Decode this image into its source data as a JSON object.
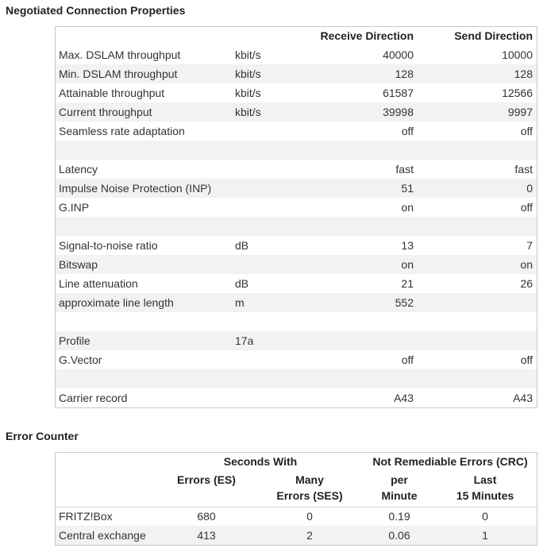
{
  "connection": {
    "title": "Negotiated Connection Properties",
    "headers": {
      "receive": "Receive Direction",
      "send": "Send Direction"
    },
    "rows": [
      {
        "label": "Max. DSLAM throughput",
        "unit": "kbit/s",
        "receive": 40000,
        "send": 10000
      },
      {
        "label": "Min. DSLAM throughput",
        "unit": "kbit/s",
        "receive": 128,
        "send": 128
      },
      {
        "label": "Attainable throughput",
        "unit": "kbit/s",
        "receive": 61587,
        "send": 12566
      },
      {
        "label": "Current throughput",
        "unit": "kbit/s",
        "receive": 39998,
        "send": 9997
      },
      {
        "label": "Seamless rate adaptation",
        "receive": "off",
        "send": "off"
      },
      null,
      {
        "label": "Latency",
        "receive": "fast",
        "send": "fast"
      },
      {
        "label": "Impulse Noise Protection (INP)",
        "receive": 51,
        "send": 0
      },
      {
        "label": "G.INP",
        "receive": "on",
        "send": "off"
      },
      null,
      {
        "label": "Signal-to-noise ratio",
        "unit": "dB",
        "receive": 13,
        "send": 7
      },
      {
        "label": "Bitswap",
        "receive": "on",
        "send": "on"
      },
      {
        "label": "Line attenuation",
        "unit": "dB",
        "receive": 21,
        "send": 26
      },
      {
        "label": "approximate line length",
        "unit": "m",
        "receive": 552
      },
      null,
      {
        "label": "Profile",
        "unit": "17a"
      },
      {
        "label": "G.Vector",
        "receive": "off",
        "send": "off"
      },
      null,
      {
        "label": "Carrier record",
        "receive": "A43",
        "send": "A43"
      }
    ]
  },
  "errors": {
    "title": "Error Counter",
    "groups": [
      "Seconds With",
      "Not Remediable Errors (CRC)"
    ],
    "columns": [
      [
        "Errors (ES)"
      ],
      [
        "Many",
        "Errors (SES)"
      ],
      [
        "per",
        "Minute"
      ],
      [
        "Last",
        "15 Minutes"
      ]
    ],
    "rows": [
      {
        "label": "FRITZ!Box",
        "values": [
          680,
          0,
          0.19,
          0
        ]
      },
      {
        "label": "Central exchange",
        "values": [
          413,
          2,
          0.06,
          1
        ]
      }
    ]
  }
}
